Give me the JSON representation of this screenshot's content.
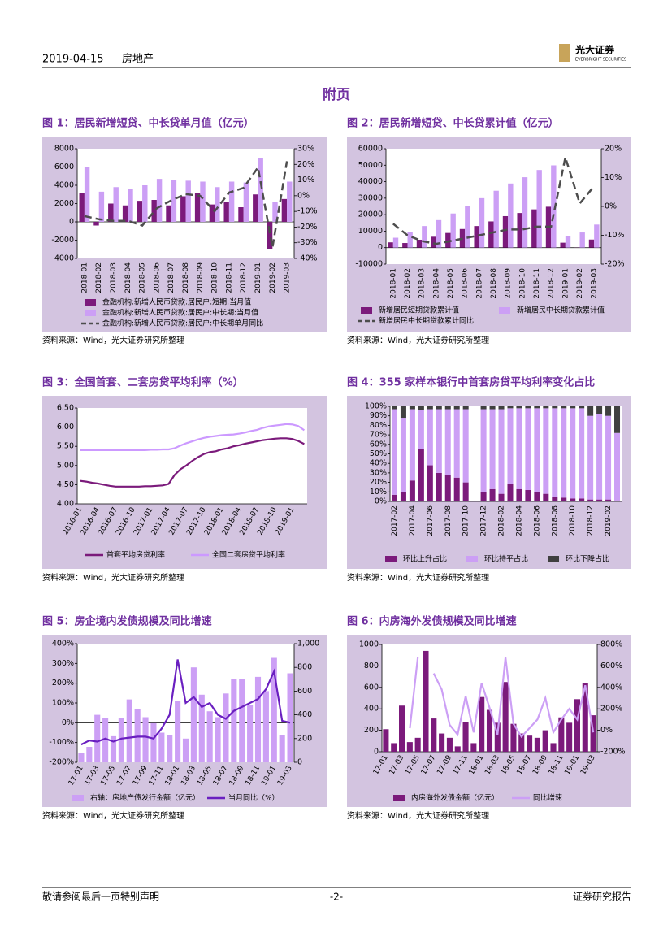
{
  "header": {
    "date": "2019-04-15",
    "section": "房地产",
    "logo_cn": "光大证券",
    "logo_en": "EVERBRIGHT SECURITIES"
  },
  "page_title": "附页",
  "chart_data": [
    {
      "type": "bar_line",
      "title": "图 1：居民新增短贷、中长贷单月值（亿元）",
      "categories": [
        "2018-01",
        "2018-02",
        "2018-03",
        "2018-04",
        "2018-05",
        "2018-06",
        "2018-07",
        "2018-08",
        "2018-09",
        "2018-10",
        "2018-11",
        "2018-12",
        "2019-01",
        "2019-02",
        "2019-03"
      ],
      "series": [
        {
          "name": "金融机构:新增人民币贷款:居民户:短期:当月值",
          "color": "#7b1a7b",
          "kind": "bar",
          "values": [
            3200,
            -400,
            2000,
            1800,
            2300,
            2400,
            1800,
            2800,
            3200,
            1900,
            2200,
            1600,
            3000,
            -3000,
            2500
          ]
        },
        {
          "name": "金融机构:新增人民币贷款:居民户:中长期:当月值",
          "color": "#cc9ff5",
          "kind": "bar",
          "values": [
            6000,
            3300,
            3800,
            3600,
            4000,
            4700,
            4600,
            4500,
            4400,
            3800,
            4400,
            4300,
            7000,
            2200,
            4400
          ]
        },
        {
          "name": "金融机构:新增人民币贷款:居民户:中长期单月同比",
          "color": "#4d4d4d",
          "kind": "line",
          "dash": true,
          "axis": "y2",
          "values": [
            -13,
            -15,
            -16,
            -16,
            -19,
            -8,
            -3,
            1,
            0,
            -10,
            2,
            5,
            18,
            -33,
            22
          ]
        }
      ],
      "ylim": [
        -4000,
        8000
      ],
      "yticks": [
        -4000,
        -2000,
        0,
        2000,
        4000,
        6000,
        8000
      ],
      "y2lim": [
        -40,
        30
      ],
      "y2ticks": [
        {
          "value": -40,
          "label": "-40%"
        },
        {
          "value": -30,
          "label": "-30%"
        },
        {
          "value": -20,
          "label": "-20%"
        },
        {
          "value": -10,
          "label": "-10%"
        },
        {
          "value": 0,
          "label": "0%"
        },
        {
          "value": 10,
          "label": "10%"
        },
        {
          "value": 20,
          "label": "20%"
        },
        {
          "value": 30,
          "label": "30%"
        }
      ],
      "grid": false
    },
    {
      "type": "bar_line",
      "title": "图 2：居民新增短贷、中长贷累计值（亿元）",
      "categories": [
        "2018-01",
        "2018-02",
        "2018-03",
        "2018-04",
        "2018-05",
        "2018-06",
        "2018-07",
        "2018-08",
        "2018-09",
        "2018-10",
        "2018-11",
        "2018-12",
        "2019-01",
        "2019-02",
        "2019-03"
      ],
      "series": [
        {
          "name": "新增居民短期贷款累计值",
          "color": "#7b1a7b",
          "kind": "bar",
          "values": [
            3200,
            2800,
            4800,
            6600,
            8900,
            11300,
            13100,
            15900,
            19100,
            21000,
            23200,
            24800,
            3000,
            -100,
            4900
          ]
        },
        {
          "name": "新增居民中长期贷款累计值",
          "color": "#cc9ff5",
          "kind": "bar",
          "values": [
            6000,
            9300,
            13100,
            16700,
            20700,
            25400,
            30000,
            34500,
            38900,
            42700,
            47100,
            49900,
            7000,
            9200,
            14000
          ]
        },
        {
          "name": "新增居民中长期贷款累计同比",
          "color": "#4d4d4d",
          "kind": "line",
          "dash": true,
          "axis": "y2",
          "values": [
            -6,
            -10,
            -12,
            -13,
            -12,
            -11,
            -10,
            -9,
            -8,
            -8,
            -7,
            -7,
            17,
            1,
            7
          ]
        }
      ],
      "ylim": [
        -10000,
        60000
      ],
      "yticks": [
        -10000,
        0,
        10000,
        20000,
        30000,
        40000,
        50000,
        60000
      ],
      "y2lim": [
        -20,
        20
      ],
      "y2ticks": [
        {
          "value": -20,
          "label": "-20%"
        },
        {
          "value": -10,
          "label": "-10%"
        },
        {
          "value": 0,
          "label": "0%"
        },
        {
          "value": 10,
          "label": "10%"
        },
        {
          "value": 20,
          "label": "20%"
        }
      ],
      "grid": false
    },
    {
      "type": "line",
      "title": "图 3：全国首套、二套房贷平均利率（%）",
      "categories": [
        "2016-01",
        null,
        null,
        "2016-04",
        null,
        null,
        "2016-07",
        null,
        null,
        "2016-10",
        null,
        null,
        "2017-01",
        null,
        null,
        "2017-04",
        null,
        null,
        "2017-07",
        null,
        null,
        "2017-10",
        null,
        null,
        "2018-01",
        null,
        null,
        "2018-04",
        null,
        null,
        "2018-07",
        null,
        null,
        "2018-10",
        null,
        null,
        "2019-01",
        null,
        null
      ],
      "series": [
        {
          "name": "首套平均房贷利率",
          "color": "#7b1a7b",
          "values": [
            4.6,
            4.58,
            4.55,
            4.53,
            4.5,
            4.47,
            4.45,
            4.45,
            4.45,
            4.45,
            4.45,
            4.46,
            4.46,
            4.47,
            4.48,
            4.52,
            4.75,
            4.9,
            5.0,
            5.12,
            5.22,
            5.3,
            5.35,
            5.37,
            5.42,
            5.45,
            5.5,
            5.53,
            5.57,
            5.6,
            5.63,
            5.66,
            5.68,
            5.7,
            5.71,
            5.71,
            5.69,
            5.64,
            5.56
          ]
        },
        {
          "name": "全国二套房贷平均利率",
          "color": "#cc99ff",
          "values": [
            5.4,
            5.4,
            5.4,
            5.4,
            5.4,
            5.4,
            5.4,
            5.4,
            5.4,
            5.4,
            5.4,
            5.4,
            5.41,
            5.41,
            5.42,
            5.42,
            5.45,
            5.52,
            5.58,
            5.63,
            5.68,
            5.72,
            5.75,
            5.77,
            5.79,
            5.8,
            5.81,
            5.83,
            5.86,
            5.9,
            5.93,
            5.98,
            6.02,
            6.04,
            6.06,
            6.08,
            6.07,
            6.03,
            5.92
          ]
        }
      ],
      "ylim": [
        4,
        6.5
      ],
      "yticks": [
        {
          "value": 4,
          "label": "4.00"
        },
        {
          "value": 4.5,
          "label": "4.50"
        },
        {
          "value": 5,
          "label": "5.00"
        },
        {
          "value": 5.5,
          "label": "5.50"
        },
        {
          "value": 6,
          "label": "6.00"
        },
        {
          "value": 6.5,
          "label": "6.50"
        }
      ],
      "grid": false
    },
    {
      "type": "stacked_bar",
      "title": "图 4：355 家样本银行中首套房贷平均利率变化占比",
      "categories": [
        "2017-02",
        null,
        "2017-04",
        null,
        "2017-06",
        null,
        "2017-08",
        null,
        "2017-10",
        null,
        "2017-12",
        null,
        "2018-02",
        null,
        "2018-04",
        null,
        "2018-06",
        null,
        "2018-08",
        null,
        "2018-10",
        null,
        "2018-12",
        null,
        "2019-02",
        null
      ],
      "series": [
        {
          "name": "环比上升占比",
          "color": "#7b1a7b",
          "values": [
            7,
            10,
            22,
            55,
            38,
            30,
            28,
            25,
            20,
            null,
            10,
            13,
            8,
            18,
            13,
            12,
            10,
            8,
            5,
            4,
            3,
            3,
            2,
            2,
            2,
            1
          ]
        },
        {
          "name": "环比持平占比",
          "color": "#cc9ff5",
          "values": [
            90,
            78,
            75,
            41,
            59,
            67,
            69,
            72,
            77,
            null,
            87,
            84,
            89,
            80,
            85,
            86,
            88,
            90,
            93,
            94,
            95,
            95,
            88,
            90,
            88,
            71
          ]
        },
        {
          "name": "环比下降占比",
          "color": "#404040",
          "values": [
            3,
            12,
            3,
            4,
            3,
            3,
            3,
            3,
            3,
            null,
            3,
            3,
            3,
            2,
            2,
            2,
            2,
            2,
            2,
            2,
            2,
            2,
            10,
            8,
            10,
            28
          ]
        }
      ],
      "ylim": [
        0,
        100
      ],
      "yticks": [
        {
          "value": 0,
          "label": "0%"
        },
        {
          "value": 10,
          "label": "10%"
        },
        {
          "value": 20,
          "label": "20%"
        },
        {
          "value": 30,
          "label": "30%"
        },
        {
          "value": 40,
          "label": "40%"
        },
        {
          "value": 50,
          "label": "50%"
        },
        {
          "value": 60,
          "label": "60%"
        },
        {
          "value": 70,
          "label": "70%"
        },
        {
          "value": 80,
          "label": "80%"
        },
        {
          "value": 90,
          "label": "90%"
        },
        {
          "value": 100,
          "label": "100%"
        }
      ],
      "grid": false
    },
    {
      "type": "bar_line",
      "title": "图 5：房企境内发债规模及同比增速",
      "categories": [
        "17-01",
        null,
        "17-03",
        null,
        "17-05",
        null,
        "17-07",
        null,
        "17-09",
        null,
        "17-11",
        null,
        "18-01",
        null,
        "18-03",
        null,
        "18-05",
        null,
        "18-07",
        null,
        "18-09",
        null,
        "18-11",
        null,
        "19-01",
        null,
        "19-03"
      ],
      "series": [
        {
          "name": "右轴：房地产债发行金额（亿元）",
          "color": "#cc9ff5",
          "kind": "bar",
          "axis": "y2",
          "values": [
            80,
            130,
            400,
            370,
            220,
            370,
            530,
            450,
            380,
            330,
            250,
            230,
            520,
            200,
            800,
            570,
            430,
            380,
            580,
            700,
            700,
            480,
            720,
            600,
            880,
            230,
            750
          ]
        },
        {
          "name": "当月同比（%）",
          "color": "#6a1fc0",
          "kind": "line",
          "values": [
            -110,
            -90,
            -95,
            -80,
            -95,
            -80,
            -75,
            -70,
            -70,
            -80,
            -30,
            40,
            320,
            100,
            130,
            80,
            100,
            40,
            20,
            60,
            80,
            100,
            120,
            170,
            260,
            10,
            0
          ]
        }
      ],
      "ylim": [
        -200,
        400
      ],
      "yticks": [
        {
          "value": -200,
          "label": "-200%"
        },
        {
          "value": -100,
          "label": "-100%"
        },
        {
          "value": 0,
          "label": "0%"
        },
        {
          "value": 100,
          "label": "100%"
        },
        {
          "value": 200,
          "label": "200%"
        },
        {
          "value": 300,
          "label": "300%"
        },
        {
          "value": 400,
          "label": "400%"
        }
      ],
      "y2lim": [
        0,
        1000
      ],
      "y2ticks": [
        0,
        200,
        400,
        600,
        800,
        {
          "value": 1000,
          "label": "1,000"
        }
      ],
      "grid": false
    },
    {
      "type": "bar_line",
      "title": "图 6：内房海外发债规模及同比增速",
      "categories": [
        "17-01",
        null,
        "17-03",
        null,
        "17-05",
        null,
        "17-07",
        null,
        "17-09",
        null,
        "17-11",
        null,
        "18-01",
        null,
        "18-03",
        null,
        "18-05",
        null,
        "18-07",
        null,
        "18-09",
        null,
        "18-11",
        null,
        "19-01",
        null,
        "19-03"
      ],
      "series": [
        {
          "name": "内房海外发债金额（亿元）",
          "color": "#7b1a7b",
          "kind": "bar",
          "values": [
            210,
            80,
            430,
            90,
            130,
            940,
            310,
            170,
            130,
            50,
            280,
            80,
            510,
            390,
            270,
            650,
            260,
            170,
            150,
            130,
            200,
            80,
            320,
            270,
            490,
            640,
            340
          ]
        },
        {
          "name": "同比增速",
          "color": "#cc9ff5",
          "kind": "line",
          "axis": "y2",
          "values": [
            null,
            null,
            null,
            20,
            680,
            null,
            530,
            380,
            50,
            -40,
            320,
            -20,
            440,
            210,
            -40,
            680,
            60,
            -60,
            20,
            100,
            300,
            -20,
            100,
            200,
            100,
            420,
            -20
          ]
        }
      ],
      "ylim": [
        0,
        1000
      ],
      "yticks": [
        0,
        200,
        400,
        600,
        800,
        1000
      ],
      "y2lim": [
        -200,
        800
      ],
      "y2ticks": [
        {
          "value": -200,
          "label": "-200%"
        },
        {
          "value": 0,
          "label": "0%"
        },
        {
          "value": 200,
          "label": "200%"
        },
        {
          "value": 400,
          "label": "400%"
        },
        {
          "value": 600,
          "label": "600%"
        },
        {
          "value": 800,
          "label": "800%"
        }
      ],
      "grid": false
    }
  ],
  "sources": [
    "资料来源：Wind，光大证券研究所整理",
    "资料来源：Wind，光大证券研究所整理",
    "资料来源：Wind，光大证券研究所整理",
    "资料来源：Wind，光大证券研究所整理",
    "资料来源：Wind，光大证券研究所整理",
    "资料来源：Wind，光大证券研究所整理"
  ],
  "footer": {
    "left": "敬请参阅最后一页特别声明",
    "page": "-2-",
    "right": "证券研究报告"
  }
}
